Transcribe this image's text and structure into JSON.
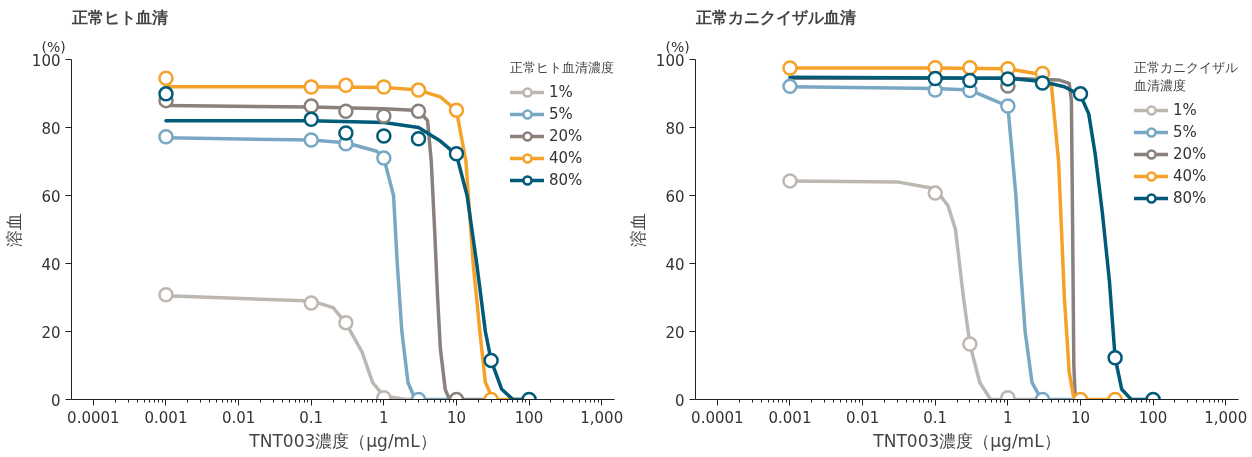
{
  "chart_data": [
    {
      "type": "line",
      "title": "正常ヒト血清",
      "xlabel": "TNT003濃度（μg/mL）",
      "ylabel": "溶血",
      "legend_title": "正常ヒト血清濃度",
      "annotations": [
        "(%)"
      ],
      "log": "x",
      "xlim": [
        5e-05,
        1500
      ],
      "xticks": [
        0.0001,
        0.001,
        0.01,
        0.1,
        1,
        10,
        100,
        {
          "value": 1000,
          "label": "1,000"
        }
      ],
      "ylim": [
        0,
        100
      ],
      "yticks": [
        0,
        20,
        40,
        60,
        80,
        100
      ],
      "grid": false,
      "legend": "top right",
      "line_style": "solid",
      "series": [
        {
          "marker": "none",
          "color": "#bdb7b2",
          "x": [
            0.001,
            0.1,
            0.2,
            0.3,
            0.5,
            0.7,
            1,
            2,
            3
          ],
          "values": [
            30.5,
            29,
            27,
            22.5,
            14,
            5,
            1,
            0,
            0
          ]
        },
        {
          "marker": "none",
          "color": "#7aa8c4",
          "x": [
            0.001,
            0.1,
            0.3,
            0.8,
            1,
            1.36,
            1.53,
            1.77,
            2.15,
            2.7,
            10
          ],
          "values": [
            77,
            76.3,
            75.5,
            73,
            71,
            60,
            40,
            20,
            5,
            0,
            0
          ]
        },
        {
          "marker": "none",
          "color": "#8a807c",
          "x": [
            0.001,
            0.1,
            1,
            3,
            4,
            4.5,
            5,
            5.5,
            6,
            7,
            8,
            10,
            30
          ],
          "values": [
            86.5,
            86,
            85.5,
            85,
            82,
            70,
            50,
            30,
            15,
            3,
            0,
            0,
            0
          ]
        },
        {
          "marker": "none",
          "color": "#f5a12a",
          "x": [
            0.001,
            0.1,
            1,
            3,
            6,
            10,
            13.5,
            17,
            21,
            25,
            32,
            100
          ],
          "values": [
            92,
            92,
            91.8,
            91,
            89,
            85,
            70,
            40,
            20,
            5,
            0,
            0
          ]
        },
        {
          "marker": "none",
          "color": "#005a78",
          "x": [
            0.001,
            0.1,
            1,
            3,
            6,
            10,
            14,
            19,
            25,
            30,
            42,
            60,
            100
          ],
          "values": [
            82,
            82,
            81.5,
            80,
            76,
            72,
            60,
            40,
            20,
            11.5,
            3,
            0,
            0
          ]
        },
        {
          "type": "scatter",
          "marker": "circle",
          "name": "1%",
          "color": "#bdb7b2",
          "x": [
            0.001,
            0.1,
            0.3,
            1
          ],
          "values": [
            30.8,
            28.4,
            22.6,
            0.5
          ]
        },
        {
          "type": "scatter",
          "marker": "circle",
          "name": "5%",
          "color": "#7aa8c4",
          "x": [
            0.001,
            0.1,
            0.3,
            1,
            3
          ],
          "values": [
            77.3,
            76.3,
            75.2,
            71,
            0
          ]
        },
        {
          "type": "scatter",
          "marker": "circle",
          "name": "20%",
          "color": "#8a807c",
          "x": [
            0.001,
            0.1,
            0.3,
            1,
            3,
            10
          ],
          "values": [
            87.9,
            86.3,
            84.8,
            83.4,
            84.8,
            0
          ]
        },
        {
          "type": "scatter",
          "marker": "circle",
          "name": "40%",
          "color": "#f5a12a",
          "x": [
            0.001,
            0.1,
            0.3,
            1,
            3,
            10,
            30
          ],
          "values": [
            94.5,
            91.9,
            92.4,
            91.9,
            91,
            85.1,
            0
          ]
        },
        {
          "type": "scatter",
          "marker": "circle",
          "name": "80%",
          "color": "#005a78",
          "x": [
            0.001,
            0.1,
            0.3,
            1,
            3,
            10,
            30,
            100
          ],
          "values": [
            89.9,
            82.4,
            78.4,
            77.5,
            76.7,
            72.3,
            11.5,
            0
          ]
        }
      ]
    },
    {
      "type": "line",
      "title": "正常カニクイザル血清",
      "xlabel": "TNT003濃度（μg/mL）",
      "ylabel": "溶血",
      "legend_title": "正常カニクイザル血清濃度",
      "annotations": [
        "(%)"
      ],
      "log": "x",
      "xlim": [
        5e-05,
        1500
      ],
      "xticks": [
        0.0001,
        0.001,
        0.01,
        0.1,
        1,
        10,
        100,
        {
          "value": 1000,
          "label": "1,000"
        }
      ],
      "ylim": [
        0,
        100
      ],
      "yticks": [
        0,
        20,
        40,
        60,
        80,
        100
      ],
      "grid": false,
      "legend": "top right",
      "line_style": "solid",
      "series": [
        {
          "marker": "none",
          "color": "#bdb7b2",
          "x": [
            0.001,
            0.03,
            0.1,
            0.15,
            0.19,
            0.245,
            0.3,
            0.41,
            0.58,
            1,
            3
          ],
          "values": [
            64.3,
            64,
            62,
            57,
            50,
            30,
            16.3,
            5,
            0,
            0,
            0
          ]
        },
        {
          "marker": "none",
          "color": "#7aa8c4",
          "x": [
            0.001,
            0.1,
            0.3,
            1,
            1.29,
            1.48,
            1.73,
            2.15,
            2.9,
            10
          ],
          "values": [
            92,
            91.5,
            91,
            86.3,
            60,
            40,
            20,
            5,
            0,
            0
          ]
        },
        {
          "marker": "none",
          "color": "#8a807c",
          "x": [
            0.001,
            1,
            5,
            7,
            7.5,
            7.8,
            8.1,
            8.5,
            10
          ],
          "values": [
            94.5,
            94.5,
            94,
            93,
            88,
            50,
            10,
            0,
            0
          ]
        },
        {
          "marker": "none",
          "color": "#f5a12a",
          "x": [
            0.001,
            0.1,
            1,
            3,
            4,
            5,
            6,
            7,
            8,
            10,
            30
          ],
          "values": [
            97.5,
            97.5,
            97.3,
            95.5,
            92,
            70,
            30,
            8,
            1,
            0,
            0
          ]
        },
        {
          "marker": "none",
          "color": "#005a78",
          "x": [
            0.001,
            1,
            3,
            6,
            10,
            13,
            16,
            20,
            25,
            30,
            37,
            50,
            100
          ],
          "values": [
            94.8,
            94.5,
            93.5,
            92,
            89.5,
            84,
            72,
            55,
            35,
            12.3,
            3,
            0,
            0
          ]
        },
        {
          "type": "scatter",
          "marker": "circle",
          "name": "1%",
          "color": "#bdb7b2",
          "x": [
            0.001,
            0.1,
            0.3,
            1
          ],
          "values": [
            64.3,
            60.7,
            16.3,
            0.5
          ]
        },
        {
          "type": "scatter",
          "marker": "circle",
          "name": "5%",
          "color": "#7aa8c4",
          "x": [
            0.001,
            0.1,
            0.3,
            1,
            3
          ],
          "values": [
            92.1,
            91,
            90.9,
            86.3,
            0
          ]
        },
        {
          "type": "scatter",
          "marker": "circle",
          "name": "20%",
          "color": "#8a807c",
          "x": [
            1
          ],
          "values": [
            92.2
          ]
        },
        {
          "type": "scatter",
          "marker": "circle",
          "name": "40%",
          "color": "#f5a12a",
          "x": [
            0.001,
            0.1,
            0.3,
            1,
            3,
            10,
            30
          ],
          "values": [
            97.5,
            97.6,
            97.6,
            97.3,
            95.9,
            0,
            0
          ]
        },
        {
          "type": "scatter",
          "marker": "circle",
          "name": "80%",
          "color": "#005a78",
          "x": [
            0.1,
            0.3,
            1,
            3,
            10,
            30,
            100
          ],
          "values": [
            94.4,
            93.8,
            94.3,
            93.1,
            89.9,
            12.3,
            0
          ]
        }
      ]
    }
  ]
}
